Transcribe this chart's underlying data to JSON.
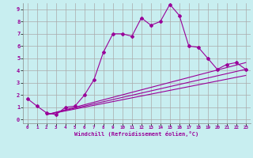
{
  "xlabel": "Windchill (Refroidissement éolien,°C)",
  "bg_color": "#c8eef0",
  "line_color": "#990099",
  "grid_color": "#aaaaaa",
  "xlim": [
    -0.5,
    23.5
  ],
  "ylim": [
    -0.3,
    9.5
  ],
  "xticks": [
    0,
    1,
    2,
    3,
    4,
    5,
    6,
    7,
    8,
    9,
    10,
    11,
    12,
    13,
    14,
    15,
    16,
    17,
    18,
    19,
    20,
    21,
    22,
    23
  ],
  "yticks": [
    0,
    1,
    2,
    3,
    4,
    5,
    6,
    7,
    8,
    9
  ],
  "curve1_x": [
    0,
    1,
    2,
    3,
    4,
    5,
    6,
    7,
    8,
    9,
    10,
    11,
    12,
    13,
    14,
    15,
    16,
    17,
    18,
    19,
    20,
    21,
    22,
    23
  ],
  "curve1_y": [
    1.7,
    1.1,
    0.55,
    0.4,
    1.0,
    1.1,
    2.0,
    3.25,
    5.5,
    7.0,
    7.0,
    6.8,
    8.3,
    7.7,
    8.0,
    9.4,
    8.5,
    6.0,
    5.9,
    5.0,
    4.1,
    4.5,
    4.65,
    4.1
  ],
  "line1_x": [
    2,
    23
  ],
  "line1_y": [
    0.4,
    4.65
  ],
  "line2_x": [
    2,
    23
  ],
  "line2_y": [
    0.4,
    4.1
  ],
  "line3_x": [
    2,
    23
  ],
  "line3_y": [
    0.4,
    3.6
  ]
}
